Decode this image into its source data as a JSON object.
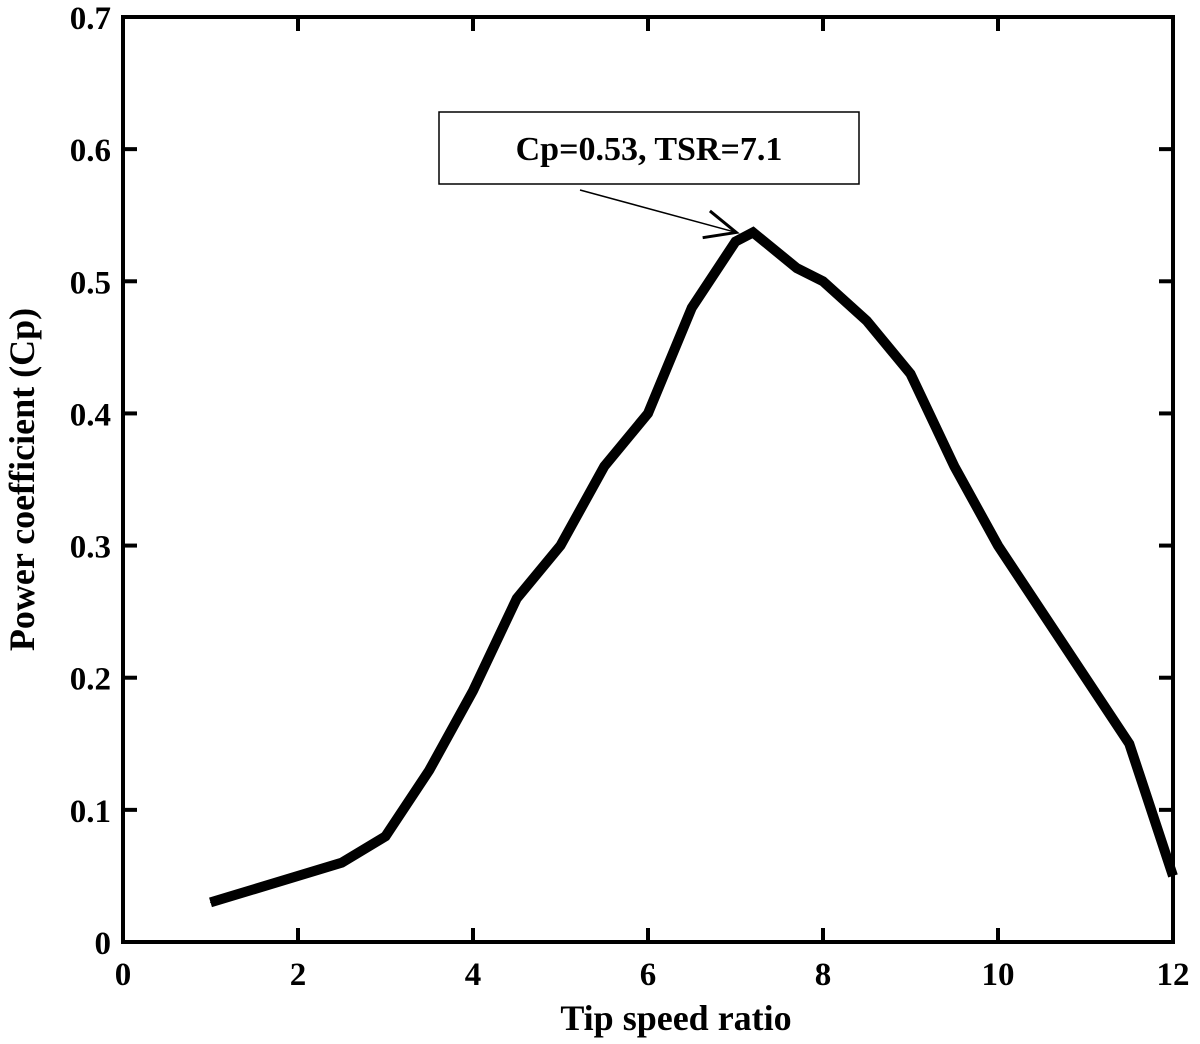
{
  "chart_data": {
    "type": "line",
    "title": "",
    "xlabel": "Tip speed ratio",
    "ylabel": "Power coefficient (Cp)",
    "xlim": [
      0,
      12
    ],
    "ylim": [
      0,
      0.7
    ],
    "x_ticks": [
      0,
      2,
      4,
      6,
      8,
      10,
      12
    ],
    "x_tick_labels": [
      "0",
      "2",
      "4",
      "6",
      "8",
      "10",
      "12"
    ],
    "y_ticks": [
      0,
      0.1,
      0.2,
      0.3,
      0.4,
      0.5,
      0.6,
      0.7
    ],
    "y_tick_labels": [
      "0",
      "0.1",
      "0.2",
      "0.3",
      "0.4",
      "0.5",
      "0.6",
      "0.7"
    ],
    "grid": false,
    "legend": "none",
    "line_color": "#000000",
    "series": [
      {
        "x": [
          1,
          2.5,
          3,
          3.5,
          4,
          4.5,
          5,
          5.5,
          6,
          6.5,
          7,
          7.2,
          7.7,
          8,
          8.5,
          9,
          9.5,
          10,
          11.5,
          12
        ],
        "y": [
          0.03,
          0.06,
          0.08,
          0.13,
          0.19,
          0.26,
          0.3,
          0.36,
          0.4,
          0.48,
          0.53,
          0.537,
          0.51,
          0.5,
          0.47,
          0.43,
          0.36,
          0.3,
          0.15,
          0.05
        ]
      }
    ],
    "annotations": [
      {
        "text": "Cp=0.53, TSR=7.1",
        "arrow_to": {
          "x": 7.1,
          "y": 0.54
        }
      }
    ]
  }
}
